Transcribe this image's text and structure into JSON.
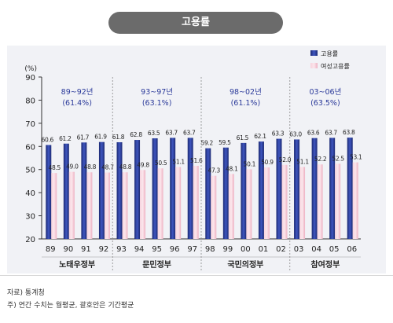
{
  "header": {
    "title": "고용률"
  },
  "chart_data": {
    "type": "bar",
    "title": "고용률",
    "ylabel": "(%)",
    "ylim": [
      20,
      90
    ],
    "yticks": [
      20,
      30,
      40,
      50,
      60,
      70,
      80,
      90
    ],
    "categories": [
      "89",
      "90",
      "91",
      "92",
      "93",
      "94",
      "95",
      "96",
      "97",
      "98",
      "99",
      "00",
      "01",
      "02",
      "03",
      "04",
      "05",
      "06"
    ],
    "value_labels": {
      "고용률": [
        "60.6",
        "61.2",
        "61.7",
        "61.9",
        "61.8",
        "62.8",
        "63.5",
        "63.7",
        "63.7",
        "59.2",
        "59.5",
        "61.5",
        "62.1",
        "63.3",
        "63.0",
        "63.6",
        "63.7",
        "63.8"
      ],
      "여성고용률": [
        "48.5",
        "49.0",
        "48.8",
        "48.7",
        "48.8",
        "49.8",
        "50.5",
        "51.1",
        "51.6",
        "47.3",
        "48.1",
        "50.1",
        "50.9",
        "52.0",
        "51.1",
        "52.2",
        "52.5",
        "53.1"
      ]
    },
    "series": [
      {
        "name": "고용률",
        "color": "#2b3e96",
        "values": [
          60.6,
          61.2,
          61.7,
          61.9,
          61.8,
          62.8,
          63.5,
          63.7,
          63.7,
          59.2,
          59.5,
          61.5,
          62.1,
          63.3,
          63.0,
          63.6,
          63.7,
          63.8
        ]
      },
      {
        "name": "여성고용률",
        "color": "#f0b8c8",
        "values": [
          48.5,
          49.0,
          48.8,
          48.7,
          48.8,
          49.8,
          50.5,
          51.1,
          51.6,
          47.3,
          48.1,
          50.1,
          50.9,
          52.0,
          51.1,
          52.2,
          52.5,
          53.1
        ]
      }
    ],
    "groups": [
      {
        "name": "노태우정부",
        "range_label": "89~92년",
        "avg_label": "(61.4%)",
        "start": 0,
        "end": 3
      },
      {
        "name": "문민정부",
        "range_label": "93~97년",
        "avg_label": "(63.1%)",
        "start": 4,
        "end": 8
      },
      {
        "name": "국민의정부",
        "range_label": "98~02년",
        "avg_label": "(61.1%)",
        "start": 9,
        "end": 13
      },
      {
        "name": "참여정부",
        "range_label": "03~06년",
        "avg_label": "(63.5%)",
        "start": 14,
        "end": 17
      }
    ],
    "legend_position": "top-right",
    "grid": false
  },
  "footnotes": {
    "source": "자료) 통계청",
    "note": "주) 연간 수치는 월평균, 괄호안은 기간평균"
  }
}
